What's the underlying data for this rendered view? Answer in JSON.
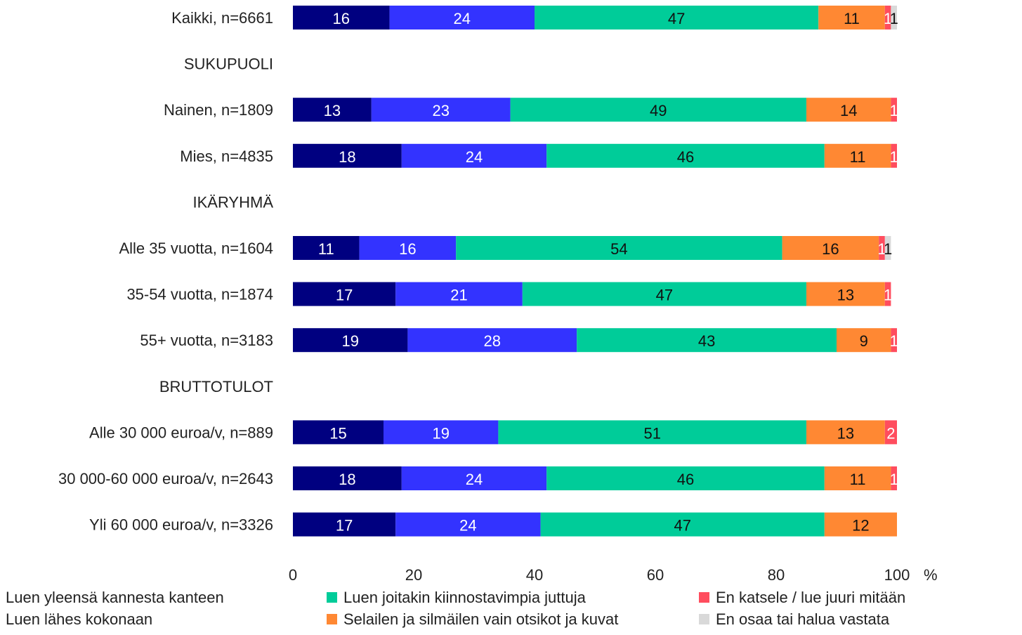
{
  "chart_data": {
    "type": "bar",
    "orientation": "horizontal",
    "stacked": true,
    "xlim": [
      0,
      100
    ],
    "x_ticks": [
      "0",
      "20",
      "40",
      "60",
      "80",
      "100"
    ],
    "x_unit": "%",
    "grid": false,
    "legend_position": "bottom",
    "rows": [
      {
        "kind": "category",
        "label": "Kaikki, n=6661",
        "values": [
          16,
          24,
          47,
          11,
          1,
          1
        ]
      },
      {
        "kind": "section",
        "label": "SUKUPUOLI"
      },
      {
        "kind": "category",
        "label": "Nainen, n=1809",
        "values": [
          13,
          23,
          49,
          14,
          1,
          0
        ]
      },
      {
        "kind": "category",
        "label": "Mies, n=4835",
        "values": [
          18,
          24,
          46,
          11,
          1,
          0
        ]
      },
      {
        "kind": "section",
        "label": "IKÄRYHMÄ"
      },
      {
        "kind": "category",
        "label": "Alle 35 vuotta, n=1604",
        "values": [
          11,
          16,
          54,
          16,
          1,
          1
        ]
      },
      {
        "kind": "category",
        "label": "35-54 vuotta, n=1874",
        "values": [
          17,
          21,
          47,
          13,
          1,
          0
        ]
      },
      {
        "kind": "category",
        "label": "55+ vuotta, n=3183",
        "values": [
          19,
          28,
          43,
          9,
          1,
          0
        ]
      },
      {
        "kind": "section",
        "label": "BRUTTOTULOT"
      },
      {
        "kind": "category",
        "label": "Alle 30 000 euroa/v, n=889",
        "values": [
          15,
          19,
          51,
          13,
          2,
          0
        ]
      },
      {
        "kind": "category",
        "label": "30 000-60 000 euroa/v, n=2643",
        "values": [
          18,
          24,
          46,
          11,
          1,
          0
        ]
      },
      {
        "kind": "category",
        "label": "Yli 60 000 euroa/v, n=3326",
        "values": [
          17,
          24,
          47,
          12,
          0,
          0
        ]
      }
    ],
    "series": [
      {
        "name": "Luen yleensä kannesta kanteen",
        "color": "#000080",
        "text_color": "#ffffff"
      },
      {
        "name": "Luen lähes kokonaan",
        "color": "#3333ff",
        "text_color": "#ffffff"
      },
      {
        "name": "Luen joitakin kiinnostavimpia juttuja",
        "color": "#00cc99",
        "text_color": "#111111"
      },
      {
        "name": "Selailen ja silmäilen vain otsikot ja kuvat",
        "color": "#ff8833",
        "text_color": "#111111"
      },
      {
        "name": "En katsele / lue juuri mitään",
        "color": "#ff4d5e",
        "text_color": "#ffffff"
      },
      {
        "name": "En osaa tai halua vastata",
        "color": "#d9d9d9",
        "text_color": "#111111"
      }
    ]
  }
}
